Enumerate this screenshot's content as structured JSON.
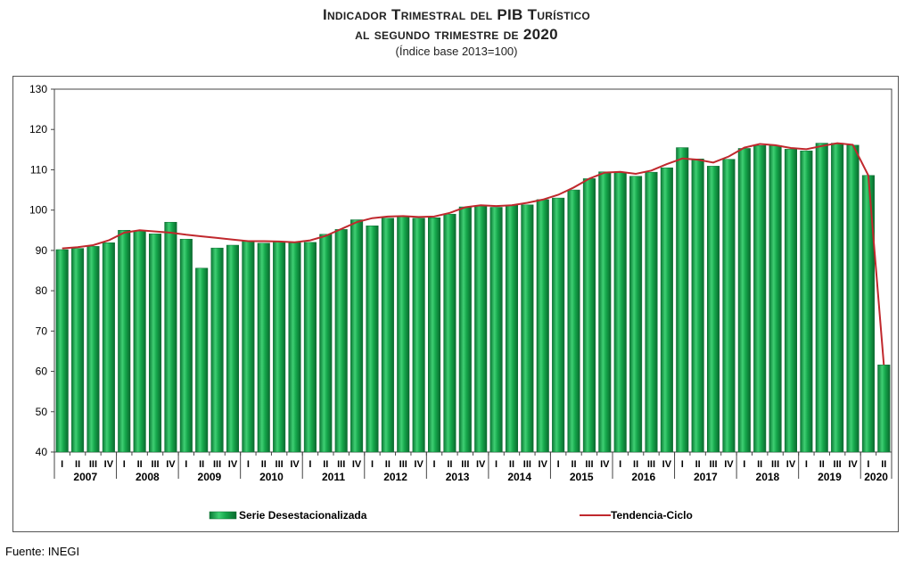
{
  "title_line1": "Indicador Trimestral del PIB Turístico",
  "title_line2": "al segundo trimestre de 2020",
  "subtitle": "(Índice base 2013=100)",
  "source": "Fuente: INEGI",
  "colors": {
    "bar": "#12a04a",
    "bar_highlight": "#5fd98a",
    "bar_edge": "#0b6b30",
    "trend": "#c0282d"
  },
  "chart_data": {
    "type": "bar",
    "ylim": [
      40,
      130
    ],
    "yticks": [
      40,
      50,
      60,
      70,
      80,
      90,
      100,
      110,
      120,
      130
    ],
    "quarter_labels": [
      "I",
      "II",
      "III",
      "IV"
    ],
    "years": [
      "2007",
      "2008",
      "2009",
      "2010",
      "2011",
      "2012",
      "2013",
      "2014",
      "2015",
      "2016",
      "2017",
      "2018",
      "2019",
      "2020"
    ],
    "categories": [
      "2007 I",
      "2007 II",
      "2007 III",
      "2007 IV",
      "2008 I",
      "2008 II",
      "2008 III",
      "2008 IV",
      "2009 I",
      "2009 II",
      "2009 III",
      "2009 IV",
      "2010 I",
      "2010 II",
      "2010 III",
      "2010 IV",
      "2011 I",
      "2011 II",
      "2011 III",
      "2011 IV",
      "2012 I",
      "2012 II",
      "2012 III",
      "2012 IV",
      "2013 I",
      "2013 II",
      "2013 III",
      "2013 IV",
      "2014 I",
      "2014 II",
      "2014 III",
      "2014 IV",
      "2015 I",
      "2015 II",
      "2015 III",
      "2015 IV",
      "2016 I",
      "2016 II",
      "2016 III",
      "2016 IV",
      "2017 I",
      "2017 II",
      "2017 III",
      "2017 IV",
      "2018 I",
      "2018 II",
      "2018 III",
      "2018 IV",
      "2019 I",
      "2019 II",
      "2019 III",
      "2019 IV",
      "2020 I",
      "2020 II"
    ],
    "series": [
      {
        "name": "Serie Desestacionalizada",
        "type": "bar",
        "values": [
          90.2,
          90.5,
          91.0,
          91.9,
          95.0,
          94.8,
          94.1,
          97.0,
          92.8,
          85.6,
          90.6,
          91.3,
          92.3,
          91.8,
          92.2,
          91.9,
          92.0,
          94.0,
          95.2,
          97.6,
          96.1,
          98.0,
          98.5,
          98.0,
          98.1,
          99.0,
          100.8,
          101.0,
          100.7,
          101.2,
          101.3,
          102.6,
          103.0,
          105.0,
          107.8,
          109.5,
          109.3,
          108.4,
          109.4,
          110.5,
          115.5,
          112.7,
          110.9,
          112.6,
          115.3,
          116.0,
          116.0,
          115.1,
          114.7,
          116.6,
          116.6,
          116.1,
          108.6,
          61.6
        ]
      },
      {
        "name": "Tendencia-Ciclo",
        "type": "line",
        "values": [
          90.5,
          90.8,
          91.3,
          92.5,
          94.4,
          95.0,
          94.7,
          94.4,
          93.9,
          93.5,
          93.1,
          92.7,
          92.3,
          92.3,
          92.2,
          92.0,
          92.5,
          93.6,
          95.3,
          97.0,
          98.0,
          98.4,
          98.5,
          98.3,
          98.4,
          99.3,
          100.7,
          101.2,
          101.0,
          101.2,
          101.8,
          102.6,
          103.8,
          105.6,
          107.8,
          109.3,
          109.5,
          109.0,
          109.8,
          111.4,
          112.8,
          112.5,
          111.8,
          113.3,
          115.5,
          116.4,
          116.1,
          115.4,
          115.1,
          115.9,
          116.6,
          116.2,
          108.6,
          61.6
        ]
      }
    ]
  }
}
